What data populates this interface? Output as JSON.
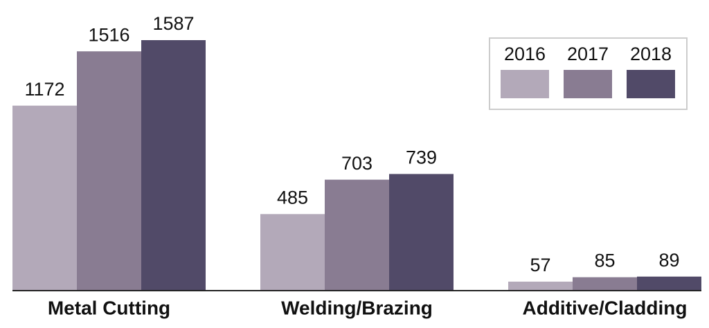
{
  "chart_data": {
    "type": "bar",
    "categories": [
      "Metal Cutting",
      "Welding/Brazing",
      "Additive/Cladding"
    ],
    "series": [
      {
        "name": "2016",
        "color": "#b3a9b9",
        "values": [
          1172,
          485,
          57
        ]
      },
      {
        "name": "2017",
        "color": "#897c92",
        "values": [
          1516,
          703,
          85
        ]
      },
      {
        "name": "2018",
        "color": "#514a68",
        "values": [
          1587,
          739,
          89
        ]
      }
    ],
    "legend": "top-right"
  }
}
